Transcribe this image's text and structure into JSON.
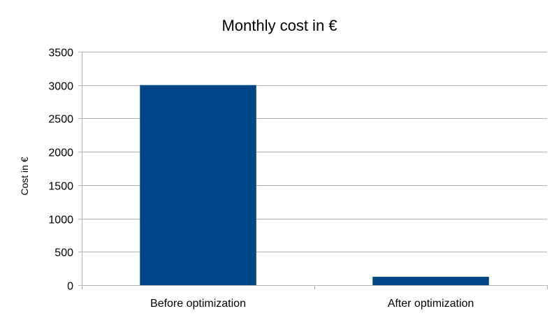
{
  "chart_data": {
    "type": "bar",
    "title": "Monthly cost in €",
    "xlabel": "",
    "ylabel": "Cost in €",
    "categories": [
      "Before optimization",
      "After optimization"
    ],
    "values": [
      3000,
      125
    ],
    "ylim": [
      0,
      3500
    ],
    "yticks": [
      0,
      500,
      1000,
      1500,
      2000,
      2500,
      3000,
      3500
    ],
    "grid": true,
    "legend": "none",
    "colors": {
      "bar": "#004586",
      "grid": "#b3b3b3",
      "axis": "#b3b3b3"
    }
  }
}
